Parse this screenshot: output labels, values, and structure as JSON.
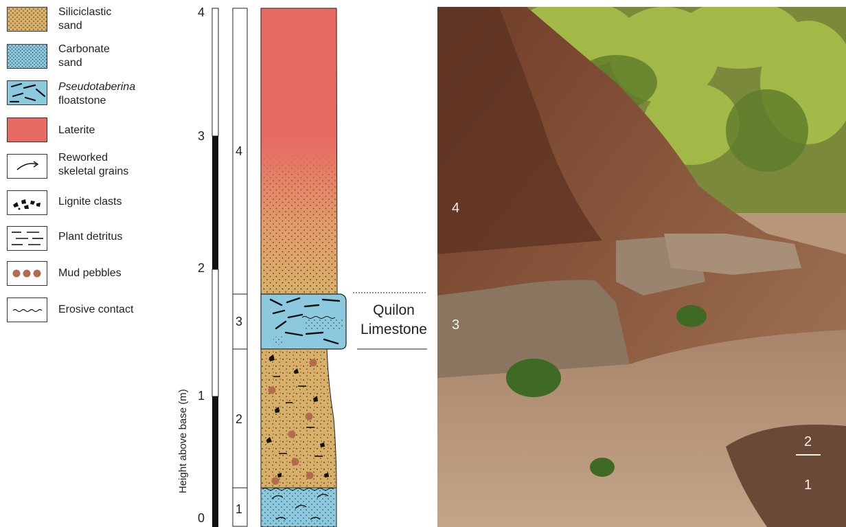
{
  "legend": [
    {
      "id": "siliciclastic",
      "label": "Siliciclastic sand",
      "line1": "Siliciclastic",
      "line2": "sand"
    },
    {
      "id": "carbonate",
      "label": "Carbonate sand",
      "line1": "Carbonate",
      "line2": "sand"
    },
    {
      "id": "pseudotaberina",
      "label": "Pseudotaberina floatstone",
      "line1": "Pseudotaberina",
      "line2": "floatstone"
    },
    {
      "id": "laterite",
      "label": "Laterite",
      "line1": "Laterite",
      "line2": ""
    },
    {
      "id": "reworked",
      "label": "Reworked skeletal grains",
      "line1": "Reworked",
      "line2": "skeletal grains"
    },
    {
      "id": "lignite",
      "label": "Lignite clasts",
      "line1": "Lignite clasts",
      "line2": ""
    },
    {
      "id": "plant",
      "label": "Plant detritus",
      "line1": "Plant detritus",
      "line2": ""
    },
    {
      "id": "mud",
      "label": "Mud pebbles",
      "line1": "Mud pebbles",
      "line2": ""
    },
    {
      "id": "erosive",
      "label": "Erosive contact",
      "line1": "Erosive contact",
      "line2": ""
    }
  ],
  "axis": {
    "title": "Height above base (m)",
    "ticks": [
      "0",
      "1",
      "2",
      "3",
      "4"
    ]
  },
  "units": [
    "1",
    "2",
    "3",
    "4"
  ],
  "formation_label": {
    "line1": "Quilon",
    "line2": "Limestone"
  },
  "photo_labels": {
    "unit4": "4",
    "unit3": "3",
    "unit2": "2",
    "unit1": "1"
  },
  "colors": {
    "siliciclastic": "#d8b06a",
    "carbonate": "#8cc9df",
    "laterite": "#e76a63",
    "mud_pebble": "#b46a4c",
    "outline": "#222222"
  }
}
